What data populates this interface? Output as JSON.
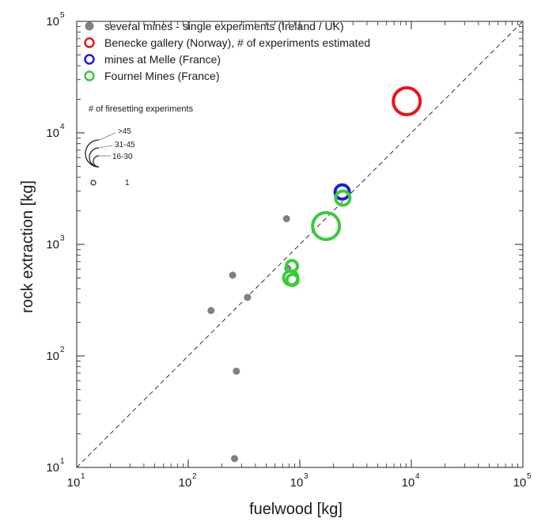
{
  "chart_data": {
    "type": "scatter",
    "xlabel": "fuelwood [kg]",
    "ylabel": "rock extraction [kg]",
    "xscale": "log",
    "yscale": "log",
    "xlim": [
      10,
      100000
    ],
    "ylim": [
      10,
      100000
    ],
    "x_ticks": [
      {
        "base": "10",
        "exp": "1"
      },
      {
        "base": "10",
        "exp": "2"
      },
      {
        "base": "10",
        "exp": "3"
      },
      {
        "base": "10",
        "exp": "4"
      },
      {
        "base": "10",
        "exp": "5"
      }
    ],
    "y_ticks": [
      {
        "base": "10",
        "exp": "1"
      },
      {
        "base": "10",
        "exp": "2"
      },
      {
        "base": "10",
        "exp": "3"
      },
      {
        "base": "10",
        "exp": "4"
      },
      {
        "base": "10",
        "exp": "5"
      }
    ],
    "grid": false,
    "reference_line": {
      "style": "dashed",
      "from": [
        10,
        10
      ],
      "to": [
        100000,
        100000
      ]
    },
    "legend_position": "top-left",
    "series": [
      {
        "name": "several mines - single experiments (Ireland / UK)",
        "color": "#808080",
        "marker": "filled-circle",
        "points": [
          {
            "x": 160,
            "y": 255
          },
          {
            "x": 250,
            "y": 530
          },
          {
            "x": 340,
            "y": 335
          },
          {
            "x": 270,
            "y": 73
          },
          {
            "x": 260,
            "y": 12
          },
          {
            "x": 760,
            "y": 1700
          },
          {
            "x": 780,
            "y": 610
          }
        ]
      },
      {
        "name": "Benecke gallery (Norway), # of experiments estimated",
        "color": "#e8161b",
        "marker": "open-circle",
        "points": [
          {
            "x": 9100,
            "y": 19200,
            "size": ">45"
          }
        ]
      },
      {
        "name": "mines at Melle (France)",
        "color": "#1b1fd1",
        "marker": "open-circle",
        "points": [
          {
            "x": 2400,
            "y": 2950,
            "size": "16-30"
          }
        ]
      },
      {
        "name": "Fournel Mines (France)",
        "color": "#3cc93c",
        "marker": "open-circle",
        "points": [
          {
            "x": 2430,
            "y": 2600,
            "size": "16-30"
          },
          {
            "x": 1720,
            "y": 1460,
            "size": ">45"
          },
          {
            "x": 850,
            "y": 640,
            "size": "1"
          },
          {
            "x": 860,
            "y": 480,
            "size": "1"
          },
          {
            "x": 830,
            "y": 500,
            "size": "16-30"
          }
        ]
      }
    ],
    "size_legend": {
      "title": "# of firesetting experiments",
      "categories": [
        ">45",
        "31-45",
        "16-30",
        "1"
      ]
    }
  }
}
